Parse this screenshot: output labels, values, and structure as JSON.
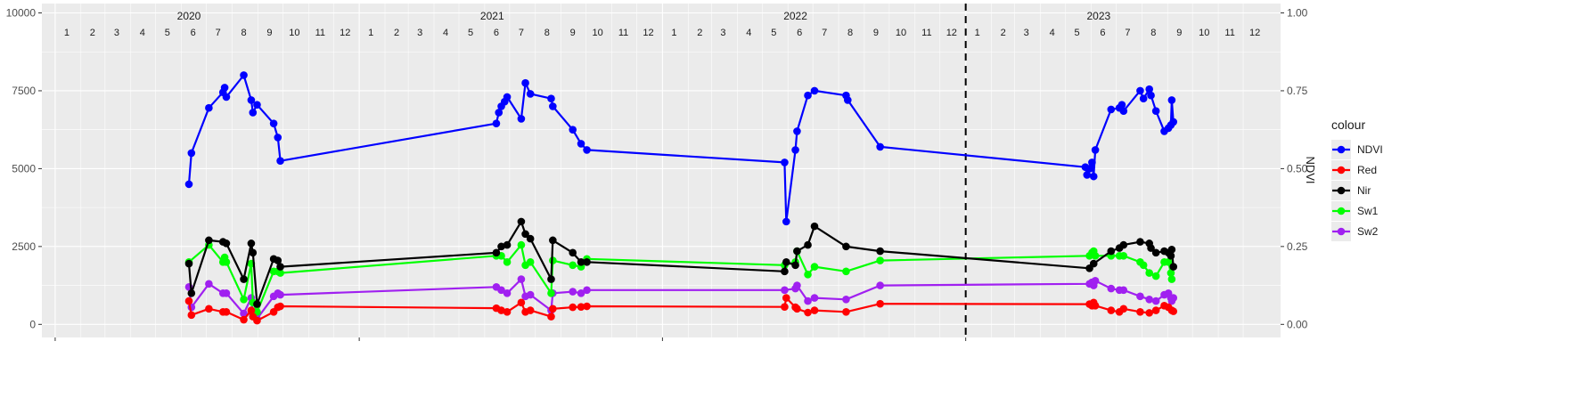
{
  "chart_data": {
    "type": "line",
    "x_unit": "month",
    "xlim": [
      "2020-01-01",
      "2023-12-31"
    ],
    "ylim_left": [
      0,
      10000
    ],
    "yticks_left": [
      0,
      2500,
      5000,
      7500,
      10000
    ],
    "yticks_left_labels": [
      "0",
      "2500",
      "5000",
      "7500",
      "10000"
    ],
    "ylim_right": [
      0,
      1.0
    ],
    "yticks_right_labels": [
      "0.00",
      "0.25",
      "0.50",
      "0.75",
      "1.00"
    ],
    "ylabel_right": "NDVI",
    "year_labels": [
      "2020",
      "2021",
      "2022",
      "2023"
    ],
    "month_labels": [
      "1",
      "2",
      "3",
      "4",
      "5",
      "6",
      "7",
      "8",
      "9",
      "10",
      "11",
      "12"
    ],
    "vline_date": "2023-01-01",
    "grid": true,
    "legend_title": "colour",
    "legend_position": "right",
    "colors": {
      "NDVI": "#0000ff",
      "Red": "#ff0000",
      "Nir": "#000000",
      "Sw1": "#00ff00",
      "Sw2": "#a020f0"
    },
    "series": [
      {
        "name": "NDVI",
        "points": [
          [
            "2020-06-10",
            4500
          ],
          [
            "2020-06-13",
            5500
          ],
          [
            "2020-07-04",
            6950
          ],
          [
            "2020-07-21",
            7450
          ],
          [
            "2020-07-23",
            7600
          ],
          [
            "2020-07-25",
            7300
          ],
          [
            "2020-08-15",
            8000
          ],
          [
            "2020-08-24",
            7200
          ],
          [
            "2020-08-26",
            6800
          ],
          [
            "2020-08-31",
            7050
          ],
          [
            "2020-09-20",
            6450
          ],
          [
            "2020-09-25",
            6000
          ],
          [
            "2020-09-28",
            5250
          ],
          [
            "2021-06-15",
            6450
          ],
          [
            "2021-06-18",
            6800
          ],
          [
            "2021-06-21",
            7000
          ],
          [
            "2021-06-25",
            7150
          ],
          [
            "2021-06-28",
            7300
          ],
          [
            "2021-07-15",
            6600
          ],
          [
            "2021-07-20",
            7750
          ],
          [
            "2021-07-26",
            7400
          ],
          [
            "2021-08-20",
            7250
          ],
          [
            "2021-08-22",
            7000
          ],
          [
            "2021-09-15",
            6250
          ],
          [
            "2021-09-25",
            5800
          ],
          [
            "2021-10-02",
            5600
          ],
          [
            "2022-05-28",
            5200
          ],
          [
            "2022-05-30",
            3300
          ],
          [
            "2022-06-10",
            5600
          ],
          [
            "2022-06-12",
            6200
          ],
          [
            "2022-06-25",
            7350
          ],
          [
            "2022-07-03",
            7500
          ],
          [
            "2022-08-10",
            7350
          ],
          [
            "2022-08-12",
            7200
          ],
          [
            "2022-09-20",
            5700
          ],
          [
            "2023-05-25",
            5050
          ],
          [
            "2023-05-27",
            4800
          ],
          [
            "2023-05-30",
            5000
          ],
          [
            "2023-06-02",
            5200
          ],
          [
            "2023-06-04",
            4750
          ],
          [
            "2023-06-06",
            5600
          ],
          [
            "2023-06-25",
            6900
          ],
          [
            "2023-07-05",
            6950
          ],
          [
            "2023-07-08",
            7050
          ],
          [
            "2023-07-10",
            6850
          ],
          [
            "2023-07-30",
            7500
          ],
          [
            "2023-08-03",
            7250
          ],
          [
            "2023-08-10",
            7550
          ],
          [
            "2023-08-12",
            7350
          ],
          [
            "2023-08-18",
            6850
          ],
          [
            "2023-08-28",
            6200
          ],
          [
            "2023-09-02",
            6300
          ],
          [
            "2023-09-05",
            6400
          ],
          [
            "2023-09-06",
            7200
          ],
          [
            "2023-09-08",
            6500
          ]
        ]
      },
      {
        "name": "Red",
        "points": [
          [
            "2020-06-10",
            750
          ],
          [
            "2020-06-13",
            300
          ],
          [
            "2020-07-04",
            500
          ],
          [
            "2020-07-21",
            400
          ],
          [
            "2020-07-25",
            400
          ],
          [
            "2020-08-15",
            150
          ],
          [
            "2020-08-24",
            450
          ],
          [
            "2020-08-26",
            250
          ],
          [
            "2020-08-31",
            120
          ],
          [
            "2020-09-20",
            400
          ],
          [
            "2020-09-25",
            550
          ],
          [
            "2020-09-28",
            580
          ],
          [
            "2021-06-15",
            520
          ],
          [
            "2021-06-21",
            450
          ],
          [
            "2021-06-28",
            400
          ],
          [
            "2021-07-15",
            700
          ],
          [
            "2021-07-20",
            400
          ],
          [
            "2021-07-26",
            450
          ],
          [
            "2021-08-20",
            250
          ],
          [
            "2021-08-22",
            500
          ],
          [
            "2021-09-15",
            550
          ],
          [
            "2021-09-25",
            560
          ],
          [
            "2021-10-02",
            580
          ],
          [
            "2022-05-28",
            560
          ],
          [
            "2022-05-30",
            850
          ],
          [
            "2022-06-10",
            550
          ],
          [
            "2022-06-12",
            500
          ],
          [
            "2022-06-25",
            380
          ],
          [
            "2022-07-03",
            450
          ],
          [
            "2022-08-10",
            400
          ],
          [
            "2022-09-20",
            660
          ],
          [
            "2023-05-30",
            650
          ],
          [
            "2023-06-02",
            600
          ],
          [
            "2023-06-04",
            700
          ],
          [
            "2023-06-06",
            600
          ],
          [
            "2023-06-25",
            450
          ],
          [
            "2023-07-05",
            400
          ],
          [
            "2023-07-10",
            500
          ],
          [
            "2023-07-30",
            400
          ],
          [
            "2023-08-10",
            370
          ],
          [
            "2023-08-18",
            450
          ],
          [
            "2023-08-28",
            600
          ],
          [
            "2023-09-02",
            550
          ],
          [
            "2023-09-06",
            450
          ],
          [
            "2023-09-08",
            420
          ]
        ]
      },
      {
        "name": "Nir",
        "points": [
          [
            "2020-06-10",
            1950
          ],
          [
            "2020-06-13",
            1000
          ],
          [
            "2020-07-04",
            2700
          ],
          [
            "2020-07-21",
            2650
          ],
          [
            "2020-07-25",
            2600
          ],
          [
            "2020-08-15",
            1450
          ],
          [
            "2020-08-24",
            2600
          ],
          [
            "2020-08-26",
            2300
          ],
          [
            "2020-08-31",
            650
          ],
          [
            "2020-09-20",
            2100
          ],
          [
            "2020-09-25",
            2050
          ],
          [
            "2020-09-28",
            1850
          ],
          [
            "2021-06-15",
            2300
          ],
          [
            "2021-06-21",
            2500
          ],
          [
            "2021-06-28",
            2550
          ],
          [
            "2021-07-15",
            3300
          ],
          [
            "2021-07-20",
            2900
          ],
          [
            "2021-07-26",
            2750
          ],
          [
            "2021-08-20",
            1450
          ],
          [
            "2021-08-22",
            2700
          ],
          [
            "2021-09-15",
            2300
          ],
          [
            "2021-09-25",
            2000
          ],
          [
            "2021-10-02",
            2000
          ],
          [
            "2022-05-28",
            1700
          ],
          [
            "2022-05-30",
            2000
          ],
          [
            "2022-06-10",
            1900
          ],
          [
            "2022-06-12",
            2350
          ],
          [
            "2022-06-25",
            2550
          ],
          [
            "2022-07-03",
            3150
          ],
          [
            "2022-08-10",
            2500
          ],
          [
            "2022-09-20",
            2350
          ],
          [
            "2023-05-30",
            1800
          ],
          [
            "2023-06-04",
            1950
          ],
          [
            "2023-06-25",
            2350
          ],
          [
            "2023-07-05",
            2450
          ],
          [
            "2023-07-10",
            2550
          ],
          [
            "2023-07-30",
            2650
          ],
          [
            "2023-08-10",
            2600
          ],
          [
            "2023-08-12",
            2450
          ],
          [
            "2023-08-18",
            2300
          ],
          [
            "2023-08-28",
            2350
          ],
          [
            "2023-09-02",
            2300
          ],
          [
            "2023-09-05",
            2200
          ],
          [
            "2023-09-06",
            2400
          ],
          [
            "2023-09-08",
            1850
          ]
        ]
      },
      {
        "name": "Sw1",
        "points": [
          [
            "2020-06-10",
            2000
          ],
          [
            "2020-07-04",
            2550
          ],
          [
            "2020-07-21",
            2000
          ],
          [
            "2020-07-23",
            2150
          ],
          [
            "2020-07-25",
            2000
          ],
          [
            "2020-08-15",
            800
          ],
          [
            "2020-08-24",
            1950
          ],
          [
            "2020-08-26",
            700
          ],
          [
            "2020-08-31",
            400
          ],
          [
            "2020-09-20",
            1700
          ],
          [
            "2020-09-25",
            1700
          ],
          [
            "2020-09-28",
            1650
          ],
          [
            "2021-06-15",
            2200
          ],
          [
            "2021-06-21",
            2200
          ],
          [
            "2021-06-28",
            2000
          ],
          [
            "2021-07-15",
            2550
          ],
          [
            "2021-07-20",
            1900
          ],
          [
            "2021-07-26",
            2000
          ],
          [
            "2021-08-20",
            1000
          ],
          [
            "2021-08-22",
            2050
          ],
          [
            "2021-09-15",
            1900
          ],
          [
            "2021-09-25",
            1850
          ],
          [
            "2021-10-02",
            2100
          ],
          [
            "2022-05-28",
            1900
          ],
          [
            "2022-06-10",
            2000
          ],
          [
            "2022-06-12",
            2350
          ],
          [
            "2022-06-25",
            1600
          ],
          [
            "2022-07-03",
            1850
          ],
          [
            "2022-08-10",
            1700
          ],
          [
            "2022-09-20",
            2050
          ],
          [
            "2023-05-30",
            2200
          ],
          [
            "2023-06-02",
            2300
          ],
          [
            "2023-06-04",
            2350
          ],
          [
            "2023-06-06",
            2200
          ],
          [
            "2023-06-25",
            2200
          ],
          [
            "2023-07-05",
            2200
          ],
          [
            "2023-07-10",
            2200
          ],
          [
            "2023-07-30",
            2000
          ],
          [
            "2023-08-03",
            1900
          ],
          [
            "2023-08-10",
            1650
          ],
          [
            "2023-08-18",
            1550
          ],
          [
            "2023-08-28",
            2000
          ],
          [
            "2023-09-02",
            2000
          ],
          [
            "2023-09-05",
            1650
          ],
          [
            "2023-09-06",
            1450
          ]
        ]
      },
      {
        "name": "Sw2",
        "points": [
          [
            "2020-06-10",
            1200
          ],
          [
            "2020-06-13",
            550
          ],
          [
            "2020-07-04",
            1300
          ],
          [
            "2020-07-21",
            1000
          ],
          [
            "2020-07-25",
            1000
          ],
          [
            "2020-08-15",
            350
          ],
          [
            "2020-08-24",
            850
          ],
          [
            "2020-08-26",
            350
          ],
          [
            "2020-08-31",
            180
          ],
          [
            "2020-09-20",
            900
          ],
          [
            "2020-09-25",
            1000
          ],
          [
            "2020-09-28",
            950
          ],
          [
            "2021-06-15",
            1200
          ],
          [
            "2021-06-21",
            1100
          ],
          [
            "2021-06-28",
            1000
          ],
          [
            "2021-07-15",
            1450
          ],
          [
            "2021-07-20",
            900
          ],
          [
            "2021-07-26",
            950
          ],
          [
            "2021-08-20",
            450
          ],
          [
            "2021-08-22",
            1000
          ],
          [
            "2021-09-15",
            1050
          ],
          [
            "2021-09-25",
            1000
          ],
          [
            "2021-10-02",
            1100
          ],
          [
            "2022-05-28",
            1100
          ],
          [
            "2022-06-10",
            1150
          ],
          [
            "2022-06-12",
            1250
          ],
          [
            "2022-06-25",
            750
          ],
          [
            "2022-07-03",
            850
          ],
          [
            "2022-08-10",
            800
          ],
          [
            "2022-09-20",
            1250
          ],
          [
            "2023-05-30",
            1300
          ],
          [
            "2023-06-02",
            1350
          ],
          [
            "2023-06-04",
            1250
          ],
          [
            "2023-06-06",
            1400
          ],
          [
            "2023-06-25",
            1150
          ],
          [
            "2023-07-05",
            1100
          ],
          [
            "2023-07-10",
            1100
          ],
          [
            "2023-07-30",
            900
          ],
          [
            "2023-08-10",
            800
          ],
          [
            "2023-08-18",
            750
          ],
          [
            "2023-08-28",
            950
          ],
          [
            "2023-09-02",
            1000
          ],
          [
            "2023-09-05",
            850
          ],
          [
            "2023-09-06",
            750
          ],
          [
            "2023-09-08",
            850
          ]
        ]
      }
    ]
  }
}
